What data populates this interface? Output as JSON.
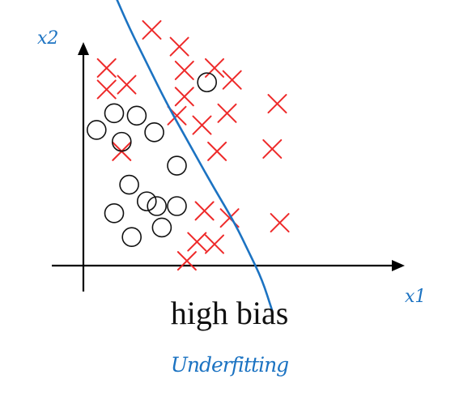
{
  "chart_data": {
    "type": "scatter",
    "title": "",
    "caption": "high bias",
    "annotation": "Underfitting",
    "xlabel": "x1",
    "ylabel": "x2",
    "xlim": [
      0,
      10
    ],
    "ylim": [
      0,
      10
    ],
    "grid": false,
    "legend": "none",
    "series": [
      {
        "marker": "cross",
        "color": "#ee2a2a",
        "points": [
          [
            2.5,
            9.9
          ],
          [
            3.6,
            9.2
          ],
          [
            0.7,
            8.3
          ],
          [
            3.8,
            8.2
          ],
          [
            5.0,
            8.3
          ],
          [
            0.7,
            7.4
          ],
          [
            1.5,
            7.6
          ],
          [
            5.7,
            7.8
          ],
          [
            3.8,
            7.1
          ],
          [
            7.5,
            6.8
          ],
          [
            3.5,
            6.3
          ],
          [
            4.5,
            5.9
          ],
          [
            5.5,
            6.4
          ],
          [
            1.3,
            4.8
          ],
          [
            5.1,
            4.8
          ],
          [
            7.3,
            4.9
          ],
          [
            4.6,
            2.3
          ],
          [
            5.6,
            2.0
          ],
          [
            7.6,
            1.8
          ],
          [
            4.3,
            1.0
          ],
          [
            5.0,
            0.9
          ],
          [
            3.9,
            0.2
          ]
        ]
      },
      {
        "marker": "circle",
        "color": "#111111",
        "points": [
          [
            4.7,
            7.7
          ],
          [
            0.3,
            5.7
          ],
          [
            1.0,
            6.4
          ],
          [
            1.9,
            6.3
          ],
          [
            2.6,
            5.6
          ],
          [
            1.3,
            5.2
          ],
          [
            3.5,
            4.2
          ],
          [
            1.6,
            3.4
          ],
          [
            2.3,
            2.7
          ],
          [
            1.0,
            2.2
          ],
          [
            2.7,
            2.5
          ],
          [
            3.5,
            2.5
          ],
          [
            1.7,
            1.2
          ],
          [
            2.9,
            1.6
          ]
        ]
      }
    ],
    "boundary": {
      "color": "#1c73c2",
      "points": [
        [
          1.1,
          11.2
        ],
        [
          1.6,
          10.0
        ],
        [
          2.3,
          8.5
        ],
        [
          3.1,
          6.8
        ],
        [
          4.0,
          5.1
        ],
        [
          4.9,
          3.4
        ],
        [
          5.8,
          1.8
        ],
        [
          6.4,
          0.5
        ],
        [
          6.9,
          -0.6
        ],
        [
          7.3,
          -1.9
        ]
      ]
    }
  }
}
